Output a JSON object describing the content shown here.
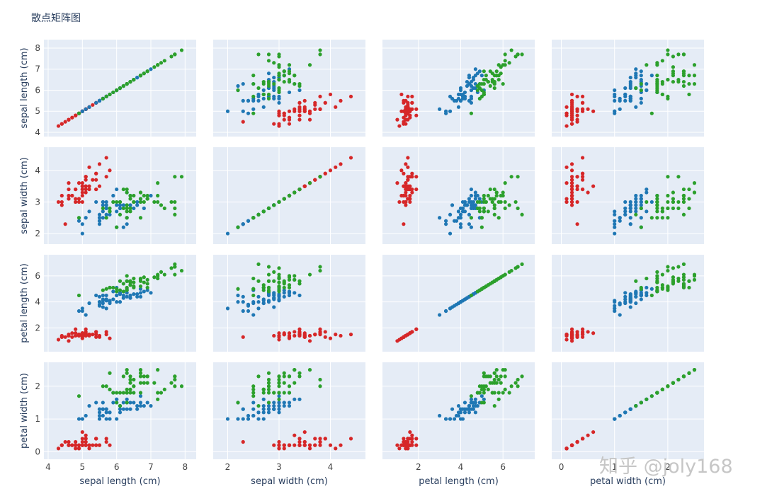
{
  "watermark": "知乎 @joly168",
  "chart_data": {
    "type": "scatter",
    "title": "散点矩阵图",
    "background": "#e5ecf6",
    "grid": true,
    "variables": [
      {
        "key": "sl",
        "label": "sepal length (cm)",
        "range": [
          4.0,
          8.2
        ],
        "ticks": [
          4,
          5,
          6,
          7,
          8
        ]
      },
      {
        "key": "sw",
        "label": "sepal width (cm)",
        "range": [
          1.8,
          4.6
        ],
        "ticks": [
          2,
          3,
          4
        ]
      },
      {
        "key": "pl",
        "label": "petal length (cm)",
        "range": [
          0.5,
          7.3
        ],
        "ticks": [
          2,
          4,
          6
        ]
      },
      {
        "key": "pw",
        "label": "petal width (cm)",
        "range": [
          -0.1,
          2.6
        ],
        "ticks": [
          0,
          1,
          2
        ]
      }
    ],
    "series": [
      {
        "color": "#d62728",
        "points": [
          [
            5.1,
            3.5,
            1.4,
            0.2
          ],
          [
            4.9,
            3.0,
            1.4,
            0.2
          ],
          [
            4.7,
            3.2,
            1.3,
            0.2
          ],
          [
            4.6,
            3.1,
            1.5,
            0.2
          ],
          [
            5.0,
            3.6,
            1.4,
            0.2
          ],
          [
            5.4,
            3.9,
            1.7,
            0.4
          ],
          [
            4.6,
            3.4,
            1.4,
            0.3
          ],
          [
            5.0,
            3.4,
            1.5,
            0.2
          ],
          [
            4.4,
            2.9,
            1.4,
            0.2
          ],
          [
            4.9,
            3.1,
            1.5,
            0.1
          ],
          [
            5.4,
            3.7,
            1.5,
            0.2
          ],
          [
            4.8,
            3.4,
            1.6,
            0.2
          ],
          [
            4.8,
            3.0,
            1.4,
            0.1
          ],
          [
            4.3,
            3.0,
            1.1,
            0.1
          ],
          [
            5.8,
            4.0,
            1.2,
            0.2
          ],
          [
            5.7,
            4.4,
            1.5,
            0.4
          ],
          [
            5.4,
            3.9,
            1.3,
            0.4
          ],
          [
            5.1,
            3.5,
            1.4,
            0.3
          ],
          [
            5.7,
            3.8,
            1.7,
            0.3
          ],
          [
            5.1,
            3.8,
            1.5,
            0.3
          ],
          [
            5.4,
            3.4,
            1.7,
            0.2
          ],
          [
            5.1,
            3.7,
            1.5,
            0.4
          ],
          [
            4.6,
            3.6,
            1.0,
            0.2
          ],
          [
            5.1,
            3.3,
            1.7,
            0.5
          ],
          [
            4.8,
            3.4,
            1.9,
            0.2
          ],
          [
            5.0,
            3.0,
            1.6,
            0.2
          ],
          [
            5.0,
            3.4,
            1.6,
            0.4
          ],
          [
            5.2,
            3.5,
            1.5,
            0.2
          ],
          [
            5.2,
            3.4,
            1.4,
            0.2
          ],
          [
            4.7,
            3.2,
            1.6,
            0.2
          ],
          [
            4.8,
            3.1,
            1.6,
            0.2
          ],
          [
            5.4,
            3.4,
            1.5,
            0.4
          ],
          [
            5.2,
            4.1,
            1.5,
            0.1
          ],
          [
            5.5,
            4.2,
            1.4,
            0.2
          ],
          [
            4.9,
            3.1,
            1.5,
            0.2
          ],
          [
            5.0,
            3.2,
            1.2,
            0.2
          ],
          [
            5.5,
            3.5,
            1.3,
            0.2
          ],
          [
            4.9,
            3.6,
            1.4,
            0.1
          ],
          [
            4.4,
            3.0,
            1.3,
            0.2
          ],
          [
            5.1,
            3.4,
            1.5,
            0.2
          ],
          [
            5.0,
            3.5,
            1.3,
            0.3
          ],
          [
            4.5,
            2.3,
            1.3,
            0.3
          ],
          [
            4.4,
            3.2,
            1.3,
            0.2
          ],
          [
            5.0,
            3.5,
            1.6,
            0.6
          ],
          [
            5.1,
            3.8,
            1.9,
            0.4
          ],
          [
            4.8,
            3.0,
            1.4,
            0.3
          ],
          [
            5.1,
            3.8,
            1.6,
            0.2
          ],
          [
            4.6,
            3.2,
            1.4,
            0.2
          ],
          [
            5.3,
            3.7,
            1.5,
            0.2
          ],
          [
            5.0,
            3.3,
            1.4,
            0.2
          ]
        ]
      },
      {
        "color": "#1f77b4",
        "points": [
          [
            7.0,
            3.2,
            4.7,
            1.4
          ],
          [
            6.4,
            3.2,
            4.5,
            1.5
          ],
          [
            6.9,
            3.1,
            4.9,
            1.5
          ],
          [
            5.5,
            2.3,
            4.0,
            1.3
          ],
          [
            6.5,
            2.8,
            4.6,
            1.5
          ],
          [
            5.7,
            2.8,
            4.5,
            1.3
          ],
          [
            6.3,
            3.3,
            4.7,
            1.6
          ],
          [
            4.9,
            2.4,
            3.3,
            1.0
          ],
          [
            6.6,
            2.9,
            4.6,
            1.3
          ],
          [
            5.2,
            2.7,
            3.9,
            1.4
          ],
          [
            5.0,
            2.0,
            3.5,
            1.0
          ],
          [
            5.9,
            3.0,
            4.2,
            1.5
          ],
          [
            6.0,
            2.2,
            4.0,
            1.0
          ],
          [
            6.1,
            2.9,
            4.7,
            1.4
          ],
          [
            5.6,
            2.9,
            3.6,
            1.3
          ],
          [
            6.7,
            3.1,
            4.4,
            1.4
          ],
          [
            5.6,
            3.0,
            4.5,
            1.5
          ],
          [
            5.8,
            2.7,
            4.1,
            1.0
          ],
          [
            6.2,
            2.2,
            4.5,
            1.5
          ],
          [
            5.6,
            2.5,
            3.9,
            1.1
          ],
          [
            5.9,
            3.2,
            4.8,
            1.8
          ],
          [
            6.1,
            2.8,
            4.0,
            1.3
          ],
          [
            6.3,
            2.5,
            4.9,
            1.5
          ],
          [
            6.1,
            2.8,
            4.7,
            1.2
          ],
          [
            6.4,
            2.9,
            4.3,
            1.3
          ],
          [
            6.6,
            3.0,
            4.4,
            1.4
          ],
          [
            6.8,
            2.8,
            4.8,
            1.4
          ],
          [
            6.7,
            3.0,
            5.0,
            1.7
          ],
          [
            6.0,
            2.9,
            4.5,
            1.5
          ],
          [
            5.7,
            2.6,
            3.5,
            1.0
          ],
          [
            5.5,
            2.4,
            3.8,
            1.1
          ],
          [
            5.5,
            2.4,
            3.7,
            1.0
          ],
          [
            5.8,
            2.7,
            3.9,
            1.2
          ],
          [
            6.0,
            2.7,
            5.1,
            1.6
          ],
          [
            5.4,
            3.0,
            4.5,
            1.5
          ],
          [
            6.0,
            3.4,
            4.5,
            1.6
          ],
          [
            6.7,
            3.1,
            4.7,
            1.5
          ],
          [
            6.3,
            2.3,
            4.4,
            1.3
          ],
          [
            5.6,
            3.0,
            4.1,
            1.3
          ],
          [
            5.5,
            2.5,
            4.0,
            1.3
          ],
          [
            5.5,
            2.6,
            4.4,
            1.2
          ],
          [
            6.1,
            3.0,
            4.6,
            1.4
          ],
          [
            5.8,
            2.6,
            4.0,
            1.2
          ],
          [
            5.0,
            2.3,
            3.3,
            1.0
          ],
          [
            5.6,
            2.7,
            4.2,
            1.3
          ],
          [
            5.7,
            3.0,
            4.2,
            1.2
          ],
          [
            5.7,
            2.9,
            4.2,
            1.3
          ],
          [
            6.2,
            2.9,
            4.3,
            1.3
          ],
          [
            5.1,
            2.5,
            3.0,
            1.1
          ],
          [
            5.7,
            2.8,
            4.1,
            1.3
          ]
        ]
      },
      {
        "color": "#2ca02c",
        "points": [
          [
            6.3,
            3.3,
            6.0,
            2.5
          ],
          [
            5.8,
            2.7,
            5.1,
            1.9
          ],
          [
            7.1,
            3.0,
            5.9,
            2.1
          ],
          [
            6.3,
            2.9,
            5.6,
            1.8
          ],
          [
            6.5,
            3.0,
            5.8,
            2.2
          ],
          [
            7.6,
            3.0,
            6.6,
            2.1
          ],
          [
            4.9,
            2.5,
            4.5,
            1.7
          ],
          [
            7.3,
            2.9,
            6.3,
            1.8
          ],
          [
            6.7,
            2.5,
            5.8,
            1.8
          ],
          [
            7.2,
            3.6,
            6.1,
            2.5
          ],
          [
            6.5,
            3.2,
            5.1,
            2.0
          ],
          [
            6.4,
            2.7,
            5.3,
            1.9
          ],
          [
            6.8,
            3.0,
            5.5,
            2.1
          ],
          [
            5.7,
            2.5,
            5.0,
            2.0
          ],
          [
            5.8,
            2.8,
            5.1,
            2.4
          ],
          [
            6.4,
            3.2,
            5.3,
            2.3
          ],
          [
            6.5,
            3.0,
            5.5,
            1.8
          ],
          [
            7.7,
            3.8,
            6.7,
            2.2
          ],
          [
            7.7,
            2.6,
            6.9,
            2.3
          ],
          [
            6.0,
            2.2,
            5.0,
            1.5
          ],
          [
            6.9,
            3.2,
            5.7,
            2.3
          ],
          [
            5.6,
            2.8,
            4.9,
            2.0
          ],
          [
            7.7,
            2.8,
            6.7,
            2.0
          ],
          [
            6.3,
            2.7,
            4.9,
            1.8
          ],
          [
            6.7,
            3.3,
            5.7,
            2.1
          ],
          [
            7.2,
            3.2,
            6.0,
            1.8
          ],
          [
            6.2,
            2.8,
            4.8,
            1.8
          ],
          [
            6.1,
            3.0,
            4.9,
            1.8
          ],
          [
            6.4,
            2.8,
            5.6,
            2.1
          ],
          [
            7.2,
            3.0,
            5.8,
            1.6
          ],
          [
            7.4,
            2.8,
            6.1,
            1.9
          ],
          [
            7.9,
            3.8,
            6.4,
            2.0
          ],
          [
            6.4,
            2.8,
            5.6,
            2.2
          ],
          [
            6.3,
            2.8,
            5.1,
            1.5
          ],
          [
            6.1,
            2.6,
            5.6,
            1.4
          ],
          [
            7.7,
            3.0,
            6.1,
            2.3
          ],
          [
            6.3,
            3.4,
            5.6,
            2.4
          ],
          [
            6.4,
            3.1,
            5.5,
            1.8
          ],
          [
            6.0,
            3.0,
            4.8,
            1.8
          ],
          [
            6.9,
            3.1,
            5.4,
            2.1
          ],
          [
            6.7,
            3.1,
            5.6,
            2.4
          ],
          [
            6.9,
            3.1,
            5.1,
            2.3
          ],
          [
            5.8,
            2.7,
            5.1,
            1.9
          ],
          [
            6.8,
            3.2,
            5.9,
            2.3
          ],
          [
            6.7,
            3.3,
            5.7,
            2.5
          ],
          [
            6.7,
            3.0,
            5.2,
            2.3
          ],
          [
            6.3,
            2.5,
            5.0,
            1.9
          ],
          [
            6.5,
            3.0,
            5.2,
            2.0
          ],
          [
            6.2,
            3.4,
            5.4,
            2.3
          ],
          [
            5.9,
            3.0,
            5.1,
            1.8
          ]
        ]
      }
    ]
  }
}
